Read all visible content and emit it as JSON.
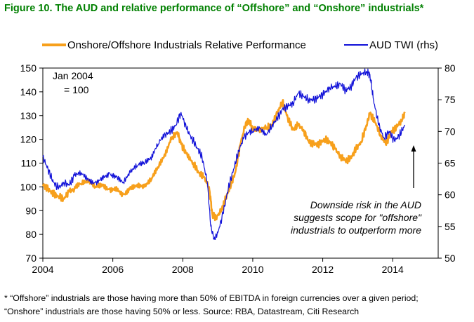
{
  "figure_title": "Figure 10. The AUD and relative performance of “Offshore” and “Onshore” industrials*",
  "footnote": [
    "* “Offshore” industrials are those having more than 50% of EBITDA in foreign currencies over a given period;",
    "“Onshore” industrials are those having 50% or less. Source: RBA, Datastream, Citi Research"
  ],
  "chart_data": {
    "type": "line",
    "title": "The AUD and relative performance of Offshore and Onshore industrials",
    "xlabel": "",
    "ylabel": "",
    "x_ticks": [
      "2004",
      "2006",
      "2008",
      "2010",
      "2012",
      "2014"
    ],
    "xlim": [
      2004,
      2015.3
    ],
    "y_left": {
      "lim": [
        70,
        150
      ],
      "ticks": [
        "70",
        "80",
        "90",
        "100",
        "110",
        "120",
        "130",
        "140",
        "150"
      ]
    },
    "y_right": {
      "lim": [
        50,
        80
      ],
      "ticks": [
        "50",
        "55",
        "60",
        "65",
        "70",
        "75",
        "80"
      ],
      "label": "rhs"
    },
    "legend_position": "top",
    "series": [
      {
        "name": "Onshore/Offshore Industrials Relative Performance",
        "axis": "left",
        "color": "#F7A01C",
        "x": [
          2004.0,
          2004.15,
          2004.3,
          2004.45,
          2004.6,
          2004.75,
          2004.9,
          2005.1,
          2005.3,
          2005.5,
          2005.7,
          2005.9,
          2006.1,
          2006.3,
          2006.5,
          2006.7,
          2006.9,
          2007.1,
          2007.3,
          2007.5,
          2007.7,
          2007.85,
          2007.95,
          2008.1,
          2008.3,
          2008.45,
          2008.6,
          2008.75,
          2008.85,
          2008.95,
          2009.1,
          2009.2,
          2009.35,
          2009.5,
          2009.65,
          2009.8,
          2009.9,
          2010.0,
          2010.2,
          2010.4,
          2010.55,
          2010.7,
          2010.85,
          2011.0,
          2011.15,
          2011.3,
          2011.45,
          2011.6,
          2011.75,
          2011.9,
          2012.05,
          2012.2,
          2012.35,
          2012.5,
          2012.65,
          2012.8,
          2012.95,
          2013.1,
          2013.25,
          2013.35,
          2013.5,
          2013.65,
          2013.8,
          2013.95,
          2014.1,
          2014.25,
          2014.35
        ],
        "values": [
          101,
          99,
          97,
          96,
          95,
          98,
          99,
          101,
          102,
          100,
          101,
          99,
          100,
          97,
          100,
          101,
          100,
          103,
          108,
          113,
          121,
          123,
          118,
          114,
          110,
          106,
          104,
          100,
          88,
          87,
          90,
          94,
          100,
          106,
          118,
          127,
          128,
          124,
          123,
          125,
          126,
          131,
          136,
          129,
          124,
          126,
          124,
          119,
          118,
          118,
          120,
          119,
          116,
          113,
          111,
          112,
          116,
          119,
          126,
          131,
          127,
          122,
          118,
          123,
          125,
          128,
          131
        ]
      },
      {
        "name": "AUD TWI (rhs)",
        "axis": "right",
        "color": "#1010D8",
        "x": [
          2004.0,
          2004.15,
          2004.3,
          2004.45,
          2004.6,
          2004.75,
          2004.9,
          2005.1,
          2005.3,
          2005.5,
          2005.7,
          2005.9,
          2006.1,
          2006.3,
          2006.5,
          2006.7,
          2006.9,
          2007.1,
          2007.3,
          2007.5,
          2007.65,
          2007.8,
          2007.95,
          2008.1,
          2008.25,
          2008.4,
          2008.55,
          2008.7,
          2008.8,
          2008.9,
          2009.0,
          2009.15,
          2009.3,
          2009.45,
          2009.6,
          2009.75,
          2009.9,
          2010.0,
          2010.2,
          2010.4,
          2010.55,
          2010.7,
          2010.85,
          2011.0,
          2011.15,
          2011.3,
          2011.45,
          2011.6,
          2011.75,
          2011.9,
          2012.05,
          2012.2,
          2012.35,
          2012.5,
          2012.65,
          2012.8,
          2012.95,
          2013.1,
          2013.25,
          2013.35,
          2013.45,
          2013.6,
          2013.75,
          2013.9,
          2014.05,
          2014.2,
          2014.35
        ],
        "values": [
          66,
          64,
          62,
          61,
          62,
          61.5,
          63,
          63.5,
          62.5,
          62,
          63,
          63.5,
          63,
          62,
          63.5,
          64.5,
          64.8,
          65.5,
          68,
          69.5,
          70,
          71,
          73,
          70.5,
          69,
          67.5,
          66,
          62,
          55,
          53,
          54,
          57,
          61,
          64,
          67,
          69,
          70,
          70,
          70.5,
          69.5,
          71,
          72,
          73.5,
          74,
          74.5,
          76,
          75.5,
          75,
          75,
          75.5,
          76,
          77,
          77,
          77.5,
          76.5,
          77,
          78.5,
          79,
          79.5,
          79,
          75,
          71,
          69,
          70,
          68.5,
          69.5,
          71
        ]
      }
    ],
    "annotations": [
      {
        "id": "base",
        "lines": [
          "Jan 2004",
          "= 100"
        ]
      },
      {
        "id": "risk",
        "lines": [
          "Downside risk in the AUD",
          "suggests scope for \"offshore\"",
          "industrials to outperform more"
        ]
      }
    ]
  }
}
